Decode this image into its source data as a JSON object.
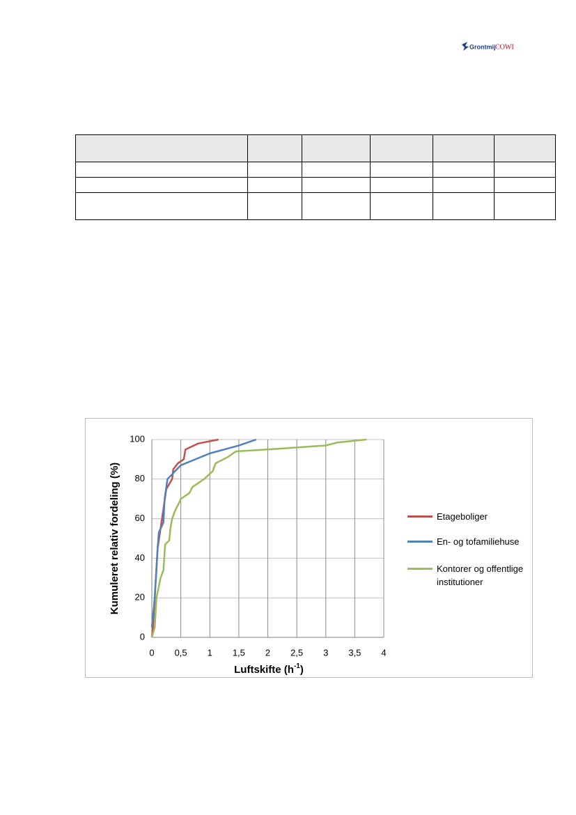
{
  "header": {
    "logo_left": "Grontmij",
    "logo_right": "COWI"
  },
  "chart_data": {
    "type": "line",
    "ylabel": "Kumuleret relativ fordeling (%)",
    "xlabel": {
      "text": "Luftskifte (h",
      "sup": "-1",
      "end": ")"
    },
    "xlim": [
      0,
      4
    ],
    "xticks": [
      0,
      {
        "value": 0.5,
        "label": "0,5"
      },
      1,
      {
        "value": 1.5,
        "label": "1,5"
      },
      2,
      {
        "value": 2.5,
        "label": "2,5"
      },
      3,
      {
        "value": 3.5,
        "label": "3,5"
      },
      4
    ],
    "ylim": [
      0,
      100
    ],
    "yticks": [
      0,
      20,
      40,
      60,
      80,
      100
    ],
    "grid": true,
    "legend": "right",
    "series": [
      {
        "name": "Etageboliger",
        "color": "#c0504d",
        "x": [
          0,
          0.02,
          0.05,
          0.08,
          0.1,
          0.15,
          0.2,
          0.25,
          0.35,
          0.37,
          0.45,
          0.55,
          0.58,
          0.8,
          1.15
        ],
        "values": [
          0,
          5,
          20,
          35,
          45,
          55,
          65,
          75,
          80,
          85,
          88,
          90,
          95,
          98,
          100
        ]
      },
      {
        "name": "En- og tofamiliehuse",
        "color": "#4f81bd",
        "x": [
          0,
          0.05,
          0.08,
          0.1,
          0.12,
          0.2,
          0.22,
          0.25,
          0.27,
          0.4,
          0.5,
          1,
          1.5,
          1.8
        ],
        "values": [
          5,
          20,
          35,
          45,
          53,
          58,
          70,
          76,
          80,
          84,
          87,
          93,
          97,
          100
        ]
      },
      {
        "name": "Kontorer og offentlige institutioner",
        "color": "#9bbb59",
        "x": [
          0,
          0.05,
          0.08,
          0.15,
          0.2,
          0.23,
          0.3,
          0.32,
          0.35,
          0.4,
          0.47,
          0.5,
          0.65,
          0.7,
          0.9,
          1.05,
          1.1,
          1.3,
          1.45,
          2,
          3,
          3.2,
          3.7
        ],
        "values": [
          0,
          5,
          20,
          30,
          34,
          47,
          49,
          55,
          60,
          64,
          68,
          70,
          73,
          76,
          80,
          84,
          88,
          91,
          94,
          95,
          97,
          98.5,
          100
        ]
      }
    ]
  }
}
